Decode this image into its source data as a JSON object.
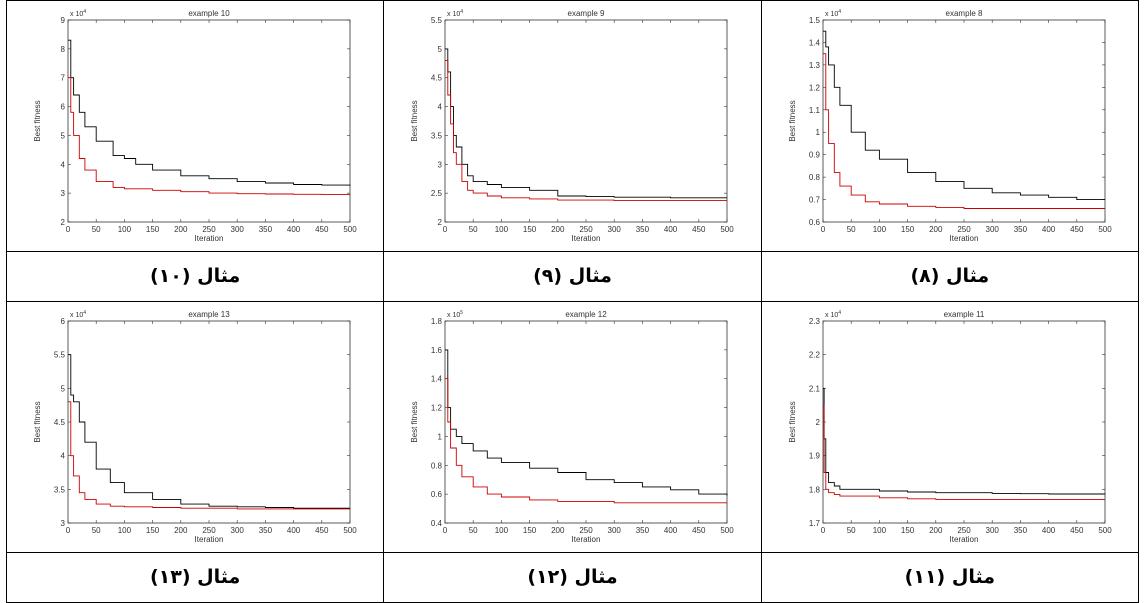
{
  "grid": {
    "rows": [
      {
        "charts": [
          {
            "chart_index": 0,
            "caption": "مثال (١٠)"
          },
          {
            "chart_index": 1,
            "caption": "مثال (٩)"
          },
          {
            "chart_index": 2,
            "caption": "مثال (٨)"
          }
        ]
      },
      {
        "charts": [
          {
            "chart_index": 3,
            "caption": "مثال (١٣)"
          },
          {
            "chart_index": 4,
            "caption": "مثال (١٢)"
          },
          {
            "chart_index": 5,
            "caption": "مثال (١١)"
          }
        ]
      }
    ]
  },
  "chart_data": [
    {
      "type": "line",
      "title": "example 10",
      "xlabel": "Iteration",
      "ylabel": "Best fitness",
      "xlim": [
        0,
        500
      ],
      "ylim": [
        2,
        9
      ],
      "y_exponent": "x 10^4",
      "xticks": [
        0,
        50,
        100,
        150,
        200,
        250,
        300,
        350,
        400,
        450,
        500
      ],
      "yticks": [
        2,
        3,
        4,
        5,
        6,
        7,
        8,
        9
      ],
      "series": [
        {
          "color": "#000000",
          "x": [
            0,
            5,
            10,
            20,
            30,
            50,
            80,
            100,
            120,
            150,
            200,
            250,
            300,
            350,
            400,
            450,
            500
          ],
          "y": [
            8.3,
            7.0,
            6.4,
            5.8,
            5.3,
            4.8,
            4.3,
            4.2,
            4.0,
            3.8,
            3.6,
            3.5,
            3.4,
            3.35,
            3.3,
            3.28,
            3.25
          ]
        },
        {
          "color": "#cc0000",
          "x": [
            0,
            5,
            10,
            20,
            30,
            50,
            80,
            100,
            150,
            200,
            250,
            300,
            350,
            400,
            450,
            500
          ],
          "y": [
            7.0,
            5.8,
            5.0,
            4.2,
            3.8,
            3.4,
            3.2,
            3.15,
            3.1,
            3.05,
            3.0,
            2.98,
            2.97,
            2.96,
            2.95,
            2.95
          ]
        }
      ]
    },
    {
      "type": "line",
      "title": "example 9",
      "xlabel": "Iteration",
      "ylabel": "Best fitness",
      "xlim": [
        0,
        500
      ],
      "ylim": [
        2,
        5.5
      ],
      "y_exponent": "x 10^4",
      "xticks": [
        0,
        50,
        100,
        150,
        200,
        250,
        300,
        350,
        400,
        450,
        500
      ],
      "yticks": [
        2,
        2.5,
        3,
        3.5,
        4,
        4.5,
        5,
        5.5
      ],
      "series": [
        {
          "color": "#000000",
          "x": [
            0,
            5,
            10,
            15,
            20,
            30,
            40,
            50,
            75,
            100,
            150,
            200,
            250,
            300,
            350,
            400,
            450,
            500
          ],
          "y": [
            5.0,
            4.6,
            4.0,
            3.5,
            3.3,
            3.0,
            2.8,
            2.7,
            2.65,
            2.6,
            2.55,
            2.45,
            2.44,
            2.43,
            2.43,
            2.42,
            2.42,
            2.42
          ]
        },
        {
          "color": "#cc0000",
          "x": [
            0,
            5,
            10,
            15,
            20,
            30,
            40,
            50,
            75,
            100,
            150,
            200,
            250,
            300,
            350,
            400,
            450,
            500
          ],
          "y": [
            4.8,
            4.2,
            3.7,
            3.2,
            3.0,
            2.7,
            2.55,
            2.5,
            2.45,
            2.42,
            2.4,
            2.38,
            2.38,
            2.37,
            2.37,
            2.37,
            2.37,
            2.37
          ]
        }
      ]
    },
    {
      "type": "line",
      "title": "example 8",
      "xlabel": "Iteration",
      "ylabel": "Best fitness",
      "xlim": [
        0,
        500
      ],
      "ylim": [
        0.6,
        1.5
      ],
      "y_exponent": "x 10^4",
      "xticks": [
        0,
        50,
        100,
        150,
        200,
        250,
        300,
        350,
        400,
        450,
        500
      ],
      "yticks": [
        0.6,
        0.7,
        0.8,
        0.9,
        1,
        1.1,
        1.2,
        1.3,
        1.4,
        1.5
      ],
      "series": [
        {
          "color": "#000000",
          "x": [
            0,
            5,
            10,
            20,
            30,
            50,
            75,
            100,
            150,
            200,
            250,
            300,
            350,
            400,
            450,
            500
          ],
          "y": [
            1.45,
            1.38,
            1.3,
            1.2,
            1.12,
            1.0,
            0.92,
            0.88,
            0.82,
            0.78,
            0.75,
            0.73,
            0.72,
            0.71,
            0.7,
            0.7
          ]
        },
        {
          "color": "#cc0000",
          "x": [
            0,
            5,
            10,
            20,
            30,
            50,
            75,
            100,
            150,
            200,
            250,
            300,
            350,
            400,
            450,
            500
          ],
          "y": [
            1.35,
            1.1,
            0.95,
            0.82,
            0.76,
            0.72,
            0.69,
            0.68,
            0.67,
            0.665,
            0.66,
            0.66,
            0.66,
            0.66,
            0.66,
            0.66
          ]
        }
      ]
    },
    {
      "type": "line",
      "title": "example 13",
      "xlabel": "Iteration",
      "ylabel": "Best fitness",
      "xlim": [
        0,
        500
      ],
      "ylim": [
        3,
        6
      ],
      "y_exponent": "x 10^4",
      "xticks": [
        0,
        50,
        100,
        150,
        200,
        250,
        300,
        350,
        400,
        450,
        500
      ],
      "yticks": [
        3,
        3.5,
        4,
        4.5,
        5,
        5.5,
        6
      ],
      "series": [
        {
          "color": "#000000",
          "x": [
            0,
            5,
            10,
            20,
            30,
            50,
            75,
            100,
            150,
            200,
            250,
            300,
            350,
            400,
            450,
            500
          ],
          "y": [
            5.5,
            4.9,
            4.8,
            4.5,
            4.2,
            3.8,
            3.6,
            3.45,
            3.35,
            3.28,
            3.25,
            3.24,
            3.23,
            3.22,
            3.22,
            3.22
          ]
        },
        {
          "color": "#cc0000",
          "x": [
            0,
            5,
            10,
            20,
            30,
            50,
            75,
            100,
            150,
            200,
            250,
            300,
            350,
            400,
            450,
            500
          ],
          "y": [
            4.8,
            4.0,
            3.7,
            3.45,
            3.35,
            3.28,
            3.25,
            3.24,
            3.23,
            3.22,
            3.22,
            3.21,
            3.21,
            3.21,
            3.21,
            3.21
          ]
        }
      ]
    },
    {
      "type": "line",
      "title": "example 12",
      "xlabel": "Iteration",
      "ylabel": "Best fitness",
      "xlim": [
        0,
        500
      ],
      "ylim": [
        0.4,
        1.8
      ],
      "y_exponent": "x 10^5",
      "xticks": [
        0,
        50,
        100,
        150,
        200,
        250,
        300,
        350,
        400,
        450,
        500
      ],
      "yticks": [
        0.4,
        0.6,
        0.8,
        1,
        1.2,
        1.4,
        1.6,
        1.8
      ],
      "series": [
        {
          "color": "#000000",
          "x": [
            0,
            5,
            10,
            20,
            30,
            50,
            75,
            100,
            150,
            200,
            250,
            300,
            350,
            400,
            450,
            500
          ],
          "y": [
            1.6,
            1.2,
            1.05,
            1.0,
            0.95,
            0.9,
            0.85,
            0.82,
            0.78,
            0.75,
            0.7,
            0.68,
            0.65,
            0.63,
            0.6,
            0.59
          ]
        },
        {
          "color": "#cc0000",
          "x": [
            0,
            5,
            10,
            20,
            30,
            50,
            75,
            100,
            150,
            200,
            250,
            300,
            350,
            400,
            450,
            500
          ],
          "y": [
            1.4,
            1.1,
            0.92,
            0.8,
            0.72,
            0.65,
            0.6,
            0.58,
            0.56,
            0.55,
            0.55,
            0.54,
            0.54,
            0.54,
            0.54,
            0.54
          ]
        }
      ]
    },
    {
      "type": "line",
      "title": "example 11",
      "xlabel": "Iteration",
      "ylabel": "Best fitness",
      "xlim": [
        0,
        500
      ],
      "ylim": [
        1.7,
        2.3
      ],
      "y_exponent": "x 10^4",
      "xticks": [
        0,
        50,
        100,
        150,
        200,
        250,
        300,
        350,
        400,
        450,
        500
      ],
      "yticks": [
        1.7,
        1.8,
        1.9,
        2,
        2.1,
        2.2,
        2.3
      ],
      "series": [
        {
          "color": "#000000",
          "x": [
            0,
            2,
            5,
            10,
            20,
            30,
            50,
            100,
            150,
            200,
            250,
            300,
            350,
            400,
            450,
            500
          ],
          "y": [
            2.1,
            1.95,
            1.85,
            1.82,
            1.81,
            1.8,
            1.8,
            1.795,
            1.792,
            1.79,
            1.79,
            1.788,
            1.787,
            1.786,
            1.786,
            1.785
          ]
        },
        {
          "color": "#cc0000",
          "x": [
            0,
            2,
            5,
            10,
            20,
            30,
            50,
            100,
            150,
            200,
            250,
            300,
            350,
            400,
            450,
            500
          ],
          "y": [
            2.05,
            1.85,
            1.8,
            1.79,
            1.785,
            1.78,
            1.78,
            1.775,
            1.772,
            1.77,
            1.77,
            1.77,
            1.77,
            1.77,
            1.77,
            1.77
          ]
        }
      ]
    }
  ]
}
